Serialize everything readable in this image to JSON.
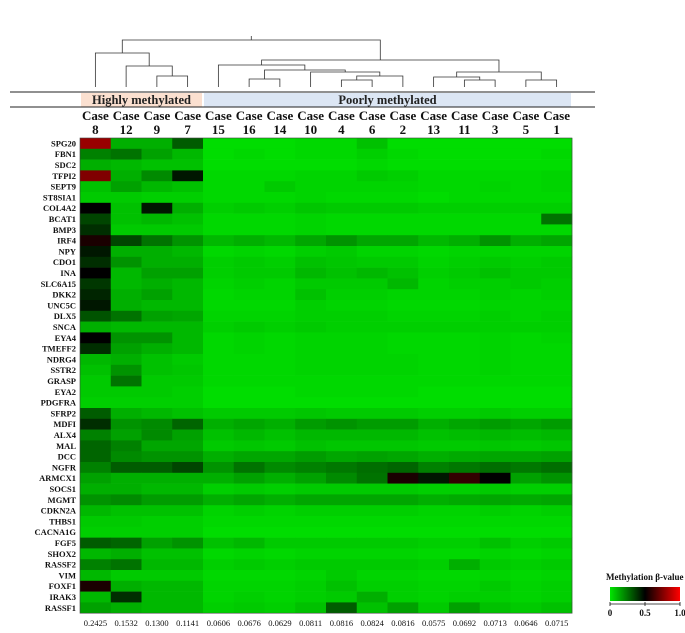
{
  "chart_data": {
    "type": "heatmap",
    "title": "",
    "group_labels": [
      {
        "label": "Highly methylated",
        "color": "#fbe0d0",
        "columns": [
          0,
          3
        ]
      },
      {
        "label": "Poorly methylated",
        "color": "#dce6f4",
        "columns": [
          4,
          15
        ]
      }
    ],
    "columns": [
      {
        "case_word": "Case",
        "number": "8",
        "mean": "0.2425"
      },
      {
        "case_word": "Case",
        "number": "12",
        "mean": "0.1532"
      },
      {
        "case_word": "Case",
        "number": "9",
        "mean": "0.1300"
      },
      {
        "case_word": "Case",
        "number": "7",
        "mean": "0.1141"
      },
      {
        "case_word": "Case",
        "number": "15",
        "mean": "0.0606"
      },
      {
        "case_word": "Case",
        "number": "16",
        "mean": "0.0676"
      },
      {
        "case_word": "Case",
        "number": "14",
        "mean": "0.0629"
      },
      {
        "case_word": "Case",
        "number": "10",
        "mean": "0.0811"
      },
      {
        "case_word": "Case",
        "number": "4",
        "mean": "0.0816"
      },
      {
        "case_word": "Case",
        "number": "6",
        "mean": "0.0824"
      },
      {
        "case_word": "Case",
        "number": "2",
        "mean": "0.0816"
      },
      {
        "case_word": "Case",
        "number": "13",
        "mean": "0.0575"
      },
      {
        "case_word": "Case",
        "number": "11",
        "mean": "0.0692"
      },
      {
        "case_word": "Case",
        "number": "3",
        "mean": "0.0713"
      },
      {
        "case_word": "Case",
        "number": "5",
        "mean": "0.0646"
      },
      {
        "case_word": "Case",
        "number": "1",
        "mean": "0.0715"
      }
    ],
    "genes": [
      "SPG20",
      "FBN1",
      "SDC2",
      "TFPI2",
      "SEPT9",
      "ST8SIA1",
      "COL4A2",
      "BCAT1",
      "BMP3",
      "IRF4",
      "NPY",
      "CDO1",
      "INA",
      "SLC6A15",
      "DKK2",
      "UNC5C",
      "DLX5",
      "SNCA",
      "EYA4",
      "TMEFF2",
      "NDRG4",
      "SSTR2",
      "GRASP",
      "EYA2",
      "PDGFRA",
      "SFRP2",
      "MDFI",
      "ALX4",
      "MAL",
      "DCC",
      "NGFR",
      "ARMCX1",
      "SOCS1",
      "MGMT",
      "CDKN2A",
      "THBS1",
      "CACNA1G",
      "FGF5",
      "SHOX2",
      "RASSF2",
      "VIM",
      "FOXF1",
      "IRAK3",
      "RASSF1"
    ],
    "values": [
      [
        0.8,
        0.12,
        0.12,
        0.3,
        0.02,
        0.02,
        0.02,
        0.03,
        0.03,
        0.08,
        0.02,
        0.02,
        0.02,
        0.02,
        0.02,
        0.02
      ],
      [
        0.22,
        0.25,
        0.15,
        0.1,
        0.02,
        0.03,
        0.02,
        0.03,
        0.03,
        0.05,
        0.03,
        0.02,
        0.02,
        0.02,
        0.02,
        0.03
      ],
      [
        0.12,
        0.1,
        0.08,
        0.08,
        0.02,
        0.02,
        0.02,
        0.02,
        0.02,
        0.03,
        0.02,
        0.02,
        0.02,
        0.02,
        0.02,
        0.02
      ],
      [
        0.75,
        0.12,
        0.2,
        0.45,
        0.03,
        0.03,
        0.03,
        0.04,
        0.04,
        0.06,
        0.05,
        0.03,
        0.03,
        0.03,
        0.03,
        0.04
      ],
      [
        0.08,
        0.15,
        0.1,
        0.08,
        0.03,
        0.03,
        0.06,
        0.04,
        0.04,
        0.04,
        0.04,
        0.03,
        0.03,
        0.04,
        0.03,
        0.04
      ],
      [
        0.06,
        0.06,
        0.05,
        0.05,
        0.03,
        0.03,
        0.03,
        0.04,
        0.03,
        0.03,
        0.03,
        0.02,
        0.03,
        0.03,
        0.03,
        0.03
      ],
      [
        0.5,
        0.08,
        0.45,
        0.12,
        0.05,
        0.06,
        0.05,
        0.07,
        0.06,
        0.06,
        0.06,
        0.05,
        0.05,
        0.05,
        0.05,
        0.05
      ],
      [
        0.35,
        0.08,
        0.1,
        0.08,
        0.03,
        0.03,
        0.03,
        0.04,
        0.03,
        0.03,
        0.03,
        0.03,
        0.03,
        0.03,
        0.03,
        0.25
      ],
      [
        0.4,
        0.06,
        0.06,
        0.06,
        0.03,
        0.03,
        0.03,
        0.04,
        0.03,
        0.03,
        0.03,
        0.03,
        0.03,
        0.03,
        0.03,
        0.03
      ],
      [
        0.55,
        0.35,
        0.25,
        0.18,
        0.1,
        0.12,
        0.1,
        0.14,
        0.18,
        0.14,
        0.14,
        0.1,
        0.12,
        0.18,
        0.12,
        0.14
      ],
      [
        0.45,
        0.12,
        0.12,
        0.1,
        0.03,
        0.04,
        0.03,
        0.05,
        0.06,
        0.04,
        0.04,
        0.03,
        0.04,
        0.04,
        0.04,
        0.04
      ],
      [
        0.4,
        0.18,
        0.12,
        0.12,
        0.05,
        0.06,
        0.05,
        0.08,
        0.07,
        0.06,
        0.06,
        0.04,
        0.05,
        0.06,
        0.05,
        0.06
      ],
      [
        0.5,
        0.1,
        0.15,
        0.15,
        0.05,
        0.06,
        0.06,
        0.1,
        0.08,
        0.1,
        0.08,
        0.05,
        0.06,
        0.08,
        0.06,
        0.06
      ],
      [
        0.38,
        0.1,
        0.12,
        0.1,
        0.04,
        0.05,
        0.04,
        0.06,
        0.06,
        0.06,
        0.1,
        0.04,
        0.05,
        0.05,
        0.06,
        0.05
      ],
      [
        0.42,
        0.12,
        0.15,
        0.1,
        0.03,
        0.04,
        0.04,
        0.08,
        0.05,
        0.05,
        0.04,
        0.04,
        0.04,
        0.05,
        0.04,
        0.05
      ],
      [
        0.45,
        0.12,
        0.1,
        0.1,
        0.03,
        0.03,
        0.03,
        0.05,
        0.04,
        0.04,
        0.03,
        0.03,
        0.03,
        0.04,
        0.04,
        0.04
      ],
      [
        0.32,
        0.25,
        0.15,
        0.14,
        0.04,
        0.04,
        0.04,
        0.05,
        0.05,
        0.05,
        0.04,
        0.04,
        0.04,
        0.05,
        0.04,
        0.05
      ],
      [
        0.12,
        0.1,
        0.1,
        0.1,
        0.05,
        0.06,
        0.05,
        0.06,
        0.05,
        0.05,
        0.05,
        0.05,
        0.05,
        0.05,
        0.05,
        0.05
      ],
      [
        0.5,
        0.18,
        0.18,
        0.1,
        0.03,
        0.04,
        0.03,
        0.04,
        0.04,
        0.04,
        0.03,
        0.03,
        0.03,
        0.04,
        0.03,
        0.04
      ],
      [
        0.4,
        0.15,
        0.12,
        0.1,
        0.03,
        0.04,
        0.03,
        0.04,
        0.04,
        0.04,
        0.03,
        0.03,
        0.03,
        0.04,
        0.03,
        0.03
      ],
      [
        0.1,
        0.12,
        0.08,
        0.06,
        0.03,
        0.03,
        0.03,
        0.04,
        0.04,
        0.04,
        0.04,
        0.03,
        0.03,
        0.04,
        0.03,
        0.03
      ],
      [
        0.08,
        0.18,
        0.08,
        0.07,
        0.03,
        0.03,
        0.03,
        0.04,
        0.04,
        0.04,
        0.04,
        0.03,
        0.03,
        0.04,
        0.03,
        0.03
      ],
      [
        0.06,
        0.25,
        0.06,
        0.06,
        0.03,
        0.03,
        0.03,
        0.03,
        0.03,
        0.03,
        0.03,
        0.03,
        0.03,
        0.03,
        0.03,
        0.03
      ],
      [
        0.06,
        0.06,
        0.06,
        0.05,
        0.02,
        0.02,
        0.02,
        0.03,
        0.03,
        0.03,
        0.03,
        0.02,
        0.02,
        0.02,
        0.02,
        0.02
      ],
      [
        0.05,
        0.05,
        0.05,
        0.05,
        0.02,
        0.02,
        0.02,
        0.02,
        0.02,
        0.02,
        0.02,
        0.02,
        0.02,
        0.02,
        0.02,
        0.02
      ],
      [
        0.3,
        0.12,
        0.1,
        0.08,
        0.06,
        0.06,
        0.06,
        0.07,
        0.06,
        0.06,
        0.06,
        0.05,
        0.05,
        0.06,
        0.05,
        0.05
      ],
      [
        0.4,
        0.18,
        0.2,
        0.28,
        0.12,
        0.14,
        0.12,
        0.16,
        0.18,
        0.16,
        0.16,
        0.12,
        0.14,
        0.16,
        0.14,
        0.16
      ],
      [
        0.22,
        0.15,
        0.2,
        0.15,
        0.08,
        0.1,
        0.08,
        0.1,
        0.1,
        0.1,
        0.1,
        0.08,
        0.09,
        0.1,
        0.09,
        0.1
      ],
      [
        0.28,
        0.22,
        0.14,
        0.14,
        0.06,
        0.07,
        0.06,
        0.08,
        0.07,
        0.07,
        0.07,
        0.06,
        0.06,
        0.07,
        0.06,
        0.07
      ],
      [
        0.28,
        0.2,
        0.18,
        0.18,
        0.12,
        0.14,
        0.14,
        0.16,
        0.14,
        0.15,
        0.14,
        0.12,
        0.13,
        0.14,
        0.14,
        0.15
      ],
      [
        0.22,
        0.3,
        0.3,
        0.35,
        0.18,
        0.25,
        0.2,
        0.22,
        0.24,
        0.26,
        0.28,
        0.22,
        0.24,
        0.26,
        0.24,
        0.26
      ],
      [
        0.15,
        0.12,
        0.12,
        0.12,
        0.12,
        0.15,
        0.12,
        0.15,
        0.2,
        0.25,
        0.55,
        0.45,
        0.6,
        0.5,
        0.15,
        0.18
      ],
      [
        0.12,
        0.12,
        0.1,
        0.1,
        0.05,
        0.06,
        0.05,
        0.06,
        0.06,
        0.06,
        0.06,
        0.05,
        0.05,
        0.06,
        0.05,
        0.05
      ],
      [
        0.18,
        0.2,
        0.16,
        0.16,
        0.12,
        0.14,
        0.12,
        0.14,
        0.14,
        0.14,
        0.14,
        0.12,
        0.13,
        0.14,
        0.13,
        0.14
      ],
      [
        0.1,
        0.08,
        0.08,
        0.08,
        0.04,
        0.05,
        0.04,
        0.05,
        0.05,
        0.05,
        0.05,
        0.04,
        0.04,
        0.05,
        0.04,
        0.05
      ],
      [
        0.06,
        0.06,
        0.05,
        0.05,
        0.03,
        0.03,
        0.03,
        0.03,
        0.03,
        0.03,
        0.03,
        0.03,
        0.03,
        0.03,
        0.03,
        0.03
      ],
      [
        0.05,
        0.05,
        0.05,
        0.05,
        0.02,
        0.02,
        0.02,
        0.02,
        0.02,
        0.02,
        0.02,
        0.02,
        0.02,
        0.02,
        0.02,
        0.02
      ],
      [
        0.3,
        0.28,
        0.15,
        0.18,
        0.08,
        0.1,
        0.06,
        0.06,
        0.06,
        0.06,
        0.06,
        0.05,
        0.05,
        0.08,
        0.05,
        0.06
      ],
      [
        0.1,
        0.12,
        0.08,
        0.08,
        0.03,
        0.04,
        0.03,
        0.04,
        0.04,
        0.04,
        0.04,
        0.03,
        0.03,
        0.04,
        0.03,
        0.04
      ],
      [
        0.22,
        0.25,
        0.1,
        0.1,
        0.05,
        0.06,
        0.05,
        0.06,
        0.06,
        0.06,
        0.06,
        0.05,
        0.12,
        0.06,
        0.05,
        0.06
      ],
      [
        0.1,
        0.06,
        0.06,
        0.06,
        0.03,
        0.03,
        0.03,
        0.04,
        0.06,
        0.04,
        0.04,
        0.03,
        0.03,
        0.04,
        0.03,
        0.04
      ],
      [
        0.55,
        0.12,
        0.1,
        0.1,
        0.04,
        0.04,
        0.04,
        0.05,
        0.08,
        0.05,
        0.05,
        0.04,
        0.04,
        0.06,
        0.04,
        0.05
      ],
      [
        0.1,
        0.4,
        0.1,
        0.1,
        0.04,
        0.05,
        0.04,
        0.05,
        0.06,
        0.12,
        0.05,
        0.04,
        0.05,
        0.05,
        0.04,
        0.05
      ],
      [
        0.15,
        0.12,
        0.1,
        0.1,
        0.05,
        0.06,
        0.05,
        0.08,
        0.3,
        0.08,
        0.15,
        0.06,
        0.15,
        0.08,
        0.06,
        0.08
      ]
    ],
    "color_scale": {
      "min": 0,
      "mid": 0.5,
      "max": 1.0,
      "colors": [
        "#00e600",
        "#000000",
        "#ff0000"
      ]
    },
    "legend": {
      "title": "Methylation β-value",
      "ticks": [
        "0",
        "0.5",
        "1.0"
      ],
      "placement": "bottom-right"
    },
    "dendrogram": true
  }
}
